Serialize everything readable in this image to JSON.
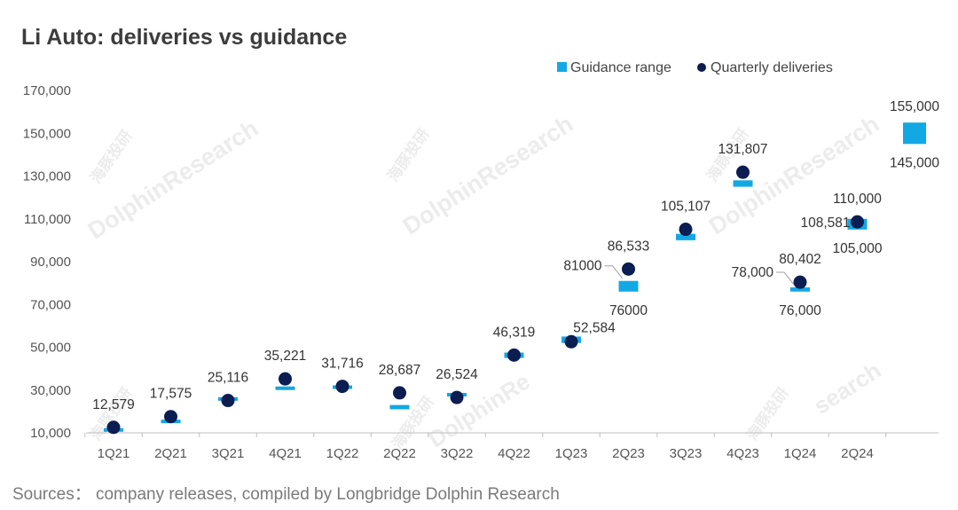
{
  "title": "Li Auto: deliveries vs guidance",
  "source": "Sources： company releases, compiled by Longbridge Dolphin Research",
  "watermark": {
    "brand": "DolphinResearch",
    "brand_cn": "海豚投研",
    "brand_alt": "DolphinRe",
    "brand_alt2": "search"
  },
  "colors": {
    "guidance": "#12A8E4",
    "deliveries": "#0B1D51",
    "axis": "#bfbfbf",
    "text": "#3b3b3b"
  },
  "chart_data": {
    "type": "scatter",
    "title": "Li Auto: deliveries vs guidance",
    "ylim": [
      10000,
      170000
    ],
    "yticks": [
      10000,
      30000,
      50000,
      70000,
      90000,
      110000,
      130000,
      150000,
      170000
    ],
    "ytick_labels": [
      "10,000",
      "30,000",
      "50,000",
      "70,000",
      "90,000",
      "110,000",
      "130,000",
      "150,000",
      "170,000"
    ],
    "legend": {
      "position": "top-right",
      "guidance_label": "Guidance range",
      "deliveries_label": "Quarterly deliveries"
    },
    "categories": [
      "1Q21",
      "2Q21",
      "3Q21",
      "4Q21",
      "1Q22",
      "2Q22",
      "3Q22",
      "4Q22",
      "1Q23",
      "2Q23",
      "3Q23",
      "4Q23",
      "1Q24",
      "2Q24",
      ""
    ],
    "series": [
      {
        "name": "Guidance range",
        "kind": "range",
        "low": [
          10500,
          14500,
          25000,
          30000,
          30500,
          21000,
          27000,
          45000,
          52000,
          76000,
          100000,
          125000,
          76000,
          105000,
          145000
        ],
        "high": [
          11500,
          15500,
          26000,
          31500,
          31500,
          23000,
          28000,
          47500,
          55000,
          81000,
          103000,
          128000,
          78000,
          110000,
          155000
        ]
      },
      {
        "name": "Quarterly deliveries",
        "kind": "points",
        "values": [
          12579,
          17575,
          25116,
          35221,
          31716,
          28687,
          26524,
          46319,
          52584,
          86533,
          105107,
          131807,
          80402,
          108581,
          null
        ]
      }
    ],
    "annotations": [
      {
        "index": 0,
        "text": "12,579",
        "pos": "above"
      },
      {
        "index": 1,
        "text": "17,575",
        "pos": "above"
      },
      {
        "index": 2,
        "text": "25,116",
        "pos": "above"
      },
      {
        "index": 3,
        "text": "35,221",
        "pos": "above"
      },
      {
        "index": 4,
        "text": "31,716",
        "pos": "above"
      },
      {
        "index": 5,
        "text": "28,687",
        "pos": "above"
      },
      {
        "index": 6,
        "text": "26,524",
        "pos": "above"
      },
      {
        "index": 7,
        "text": "46,319",
        "pos": "above"
      },
      {
        "index": 8,
        "text": "52,584",
        "pos": "above-right"
      },
      {
        "index": 9,
        "text": "86,533",
        "pos": "above"
      },
      {
        "index": 9,
        "text": "81000",
        "pos": "left-leader"
      },
      {
        "index": 9,
        "text": "76000",
        "pos": "below"
      },
      {
        "index": 10,
        "text": "105,107",
        "pos": "above"
      },
      {
        "index": 11,
        "text": "131,807",
        "pos": "above"
      },
      {
        "index": 12,
        "text": "80,402",
        "pos": "above"
      },
      {
        "index": 12,
        "text": "78,000",
        "pos": "left-leader"
      },
      {
        "index": 12,
        "text": "76,000",
        "pos": "below"
      },
      {
        "index": 13,
        "text": "110,000",
        "pos": "above"
      },
      {
        "index": 13,
        "text": "108,581",
        "pos": "left"
      },
      {
        "index": 13,
        "text": "105,000",
        "pos": "below"
      },
      {
        "index": 14,
        "text": "155,000",
        "pos": "above"
      },
      {
        "index": 14,
        "text": "145,000",
        "pos": "below"
      }
    ]
  }
}
